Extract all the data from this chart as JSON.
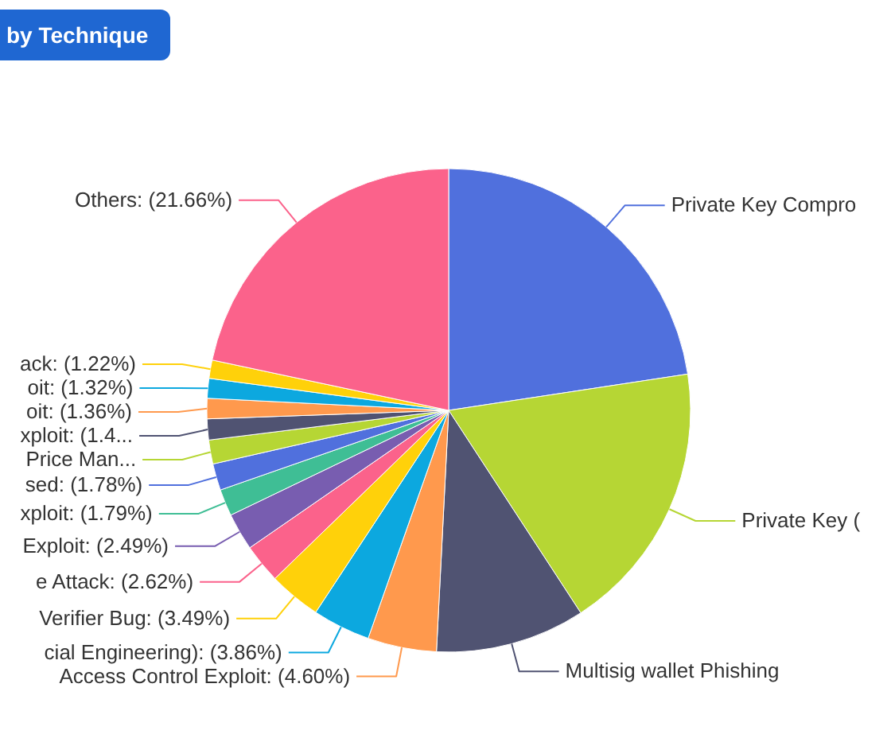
{
  "chart_data": {
    "type": "pie",
    "title": "by Technique",
    "categories": [
      "Private Key Compro",
      "Private Key (",
      "Multisig wallet Phishing",
      "Access Control Exploit",
      "cial Engineering)",
      "Verifier Bug",
      "e Attack",
      "Exploit",
      "xploit",
      "sed",
      "Price Man...",
      "xploit",
      "oit",
      "oit",
      "ack",
      "Others"
    ],
    "values": [
      22.6,
      18.2,
      10.0,
      4.6,
      3.86,
      3.49,
      2.62,
      2.49,
      1.79,
      1.78,
      1.6,
      1.4,
      1.36,
      1.32,
      1.22,
      21.66
    ],
    "value_labels": [
      null,
      null,
      null,
      "(4.60%)",
      "(3.86%)",
      "(3.49%)",
      "(2.62%)",
      "(2.49%)",
      "(1.79%)",
      "(1.78%)",
      null,
      "(1.4...",
      "(1.36%)",
      "(1.32%)",
      "(1.22%)",
      "(21.66%)"
    ],
    "colors": [
      "#5070dd",
      "#b6d634",
      "#505372",
      "#ff994d",
      "#0ca8df",
      "#ffd10a",
      "#fb628b",
      "#785db0",
      "#3fbe95",
      "#5070dd",
      "#b6d634",
      "#505372",
      "#ff994d",
      "#0ca8df",
      "#ffd10a",
      "#fb628b"
    ]
  }
}
